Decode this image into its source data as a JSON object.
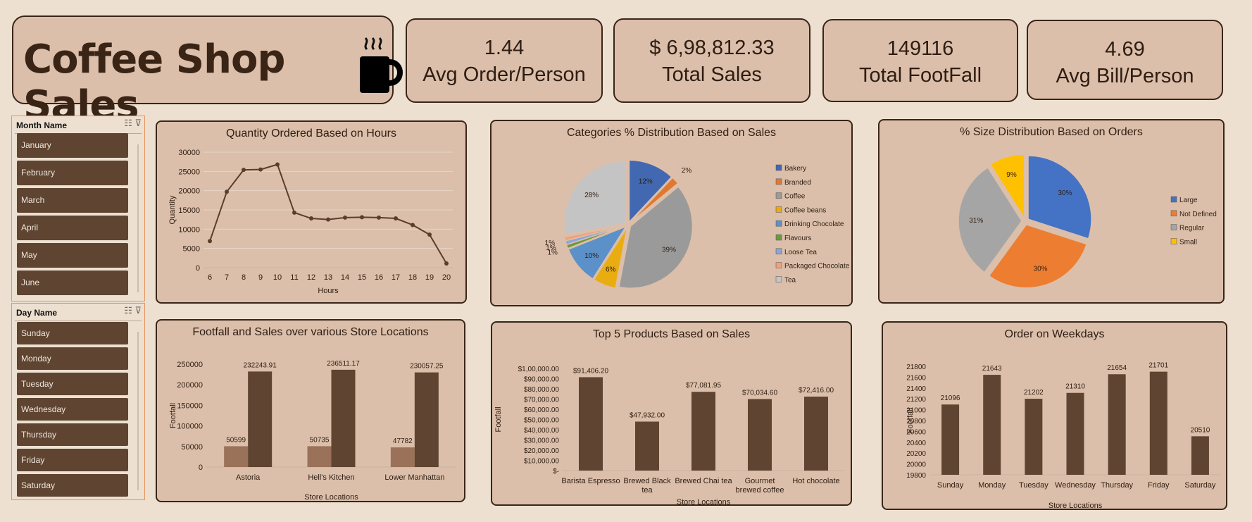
{
  "header": {
    "title": "Coffee Shop Sales",
    "icon": "coffee-mug-icon"
  },
  "kpis": [
    {
      "value": "1.44",
      "label": "Avg Order/Person"
    },
    {
      "value": "$ 6,98,812.33",
      "label": "Total Sales"
    },
    {
      "value": "149116",
      "label": "Total FootFall"
    },
    {
      "value": "4.69",
      "label": "Avg Bill/Person"
    }
  ],
  "month_slicer": {
    "title": "Month Name",
    "items": [
      "January",
      "February",
      "March",
      "April",
      "May",
      "June"
    ]
  },
  "day_slicer": {
    "title": "Day Name",
    "items": [
      "Sunday",
      "Monday",
      "Tuesday",
      "Wednesday",
      "Thursday",
      "Friday",
      "Saturday"
    ]
  },
  "colors": {
    "bar_dark": "#5e4431",
    "bar_light": "#9a7259",
    "line": "#5a3e2b"
  },
  "chart_data": [
    {
      "id": "qty_hours",
      "type": "line",
      "title": "Quantity Ordered Based on Hours",
      "xlabel": "Hours",
      "ylabel": "Quantity",
      "x": [
        6,
        7,
        8,
        9,
        10,
        11,
        12,
        13,
        14,
        15,
        16,
        17,
        18,
        19,
        20
      ],
      "values": [
        6900,
        19700,
        25400,
        25500,
        26800,
        14300,
        12800,
        12500,
        13000,
        13100,
        13000,
        12800,
        11100,
        8600,
        1100
      ],
      "ylim": [
        0,
        30000
      ],
      "yticks": [
        0,
        5000,
        10000,
        15000,
        20000,
        25000,
        30000
      ]
    },
    {
      "id": "cat_pie",
      "type": "pie",
      "title": "Categories % Distribution Based on Sales",
      "categories": [
        "Bakery",
        "Branded",
        "Coffee",
        "Coffee beans",
        "Drinking Chocolate",
        "Flavours",
        "Loose Tea",
        "Packaged Chocolate",
        "Tea"
      ],
      "values": [
        12,
        2,
        39,
        6,
        10,
        1,
        1,
        1,
        28
      ],
      "labels": [
        "12%",
        "2%",
        "39%",
        "6%",
        "10%",
        "1%",
        "1%",
        "1%",
        "28%"
      ],
      "colors": [
        "#4268b2",
        "#e0782f",
        "#9a9a9a",
        "#e9ad11",
        "#5c90c8",
        "#6b9a3e",
        "#8aa6dc",
        "#f2a07a",
        "#c4c4c4"
      ],
      "legend": "right"
    },
    {
      "id": "size_pie",
      "type": "pie",
      "title": "%  Size Distribution Based on Orders",
      "categories": [
        "Large",
        "Not Defined",
        "Regular",
        "Small"
      ],
      "values": [
        30,
        30,
        31,
        9
      ],
      "labels": [
        "30%",
        "30%",
        "31%",
        "9%"
      ],
      "colors": [
        "#4472c4",
        "#ed7d31",
        "#a5a5a5",
        "#ffc000"
      ],
      "legend": "right"
    },
    {
      "id": "footfall_locations",
      "type": "bar",
      "title": "Footfall and Sales over various Store Locations",
      "xlabel": "Store Locations",
      "ylabel": "Footfall",
      "categories": [
        "Astoria",
        "Hell's Kitchen",
        "Lower Manhattan"
      ],
      "series": [
        {
          "values": [
            50599,
            50735,
            47782
          ],
          "labels": [
            "50599",
            "50735",
            "47782"
          ]
        },
        {
          "values": [
            232243.91,
            236511.17,
            230057.25
          ],
          "labels": [
            "232243.91",
            "236511.17",
            "230057.25"
          ]
        }
      ],
      "ylim": [
        0,
        250000
      ],
      "yticks": [
        "0",
        "50000",
        "100000",
        "150000",
        "200000",
        "250000"
      ]
    },
    {
      "id": "top5_products",
      "type": "bar",
      "title": "Top 5 Products Based on Sales",
      "xlabel": "Store Locations",
      "ylabel": "Footfall",
      "categories": [
        "Barista Espresso",
        "Brewed Black tea",
        "Brewed Chai tea",
        "Gourmet brewed coffee",
        "Hot chocolate"
      ],
      "values": [
        91406.2,
        47932.0,
        77081.95,
        70034.6,
        72416.0
      ],
      "labels": [
        "$91,406.20",
        "$47,932.00",
        "$77,081.95",
        "$70,034.60",
        "$72,416.00"
      ],
      "ylim": [
        0,
        100000
      ],
      "yticks": [
        "$-",
        "$10,000.00",
        "$20,000.00",
        "$30,000.00",
        "$40,000.00",
        "$50,000.00",
        "$60,000.00",
        "$70,000.00",
        "$80,000.00",
        "$90,000.00",
        "$1,00,000.00"
      ]
    },
    {
      "id": "weekday_orders",
      "type": "bar",
      "title": "Order on Weekdays",
      "xlabel": "Store Locations",
      "ylabel": "Footfall",
      "categories": [
        "Sunday",
        "Monday",
        "Tuesday",
        "Wednesday",
        "Thursday",
        "Friday",
        "Saturday"
      ],
      "values": [
        21096,
        21643,
        21202,
        21310,
        21654,
        21701,
        20510
      ],
      "labels": [
        "21096",
        "21643",
        "21202",
        "21310",
        "21654",
        "21701",
        "20510"
      ],
      "ylim": [
        19800,
        21800
      ],
      "yticks": [
        "19800",
        "20000",
        "20200",
        "20400",
        "20600",
        "20800",
        "21000",
        "21200",
        "21400",
        "21600",
        "21800"
      ]
    }
  ]
}
